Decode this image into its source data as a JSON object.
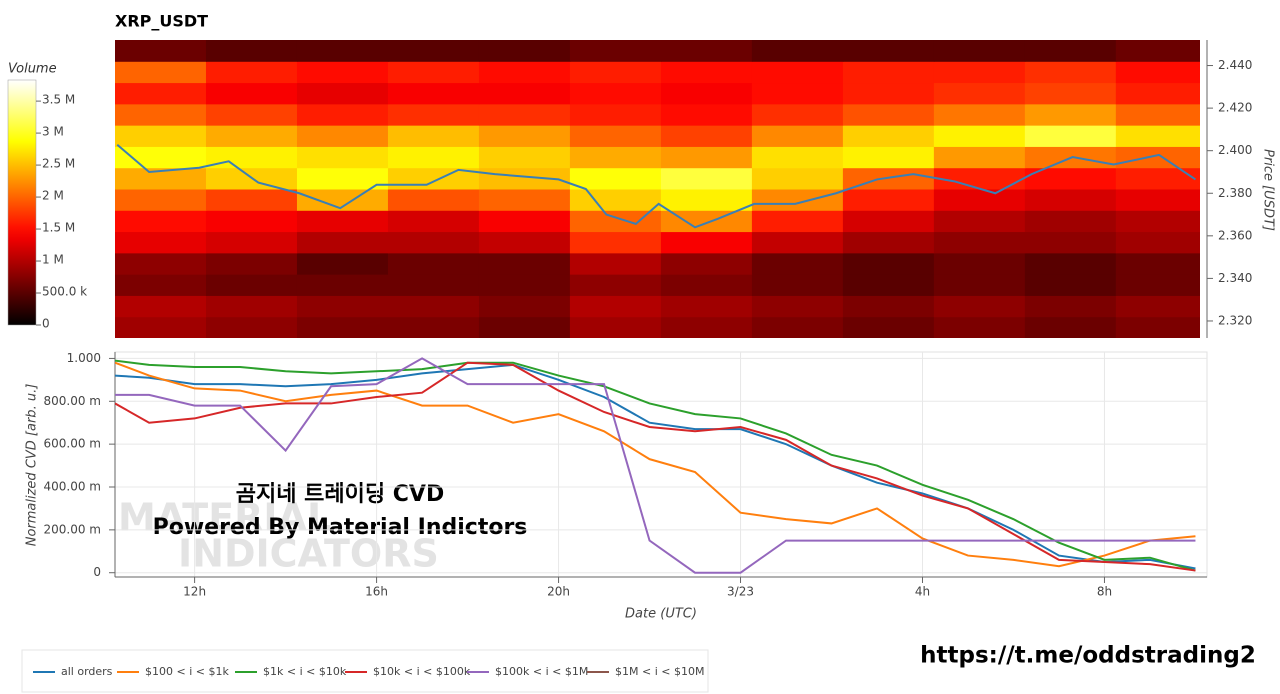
{
  "chart_data": [
    {
      "type": "heatmap",
      "title": "XRP_USDT",
      "colorbar_label": "Volume",
      "y_label": "Price [USDT]",
      "colormap": "hot",
      "x_edges": [
        10.25,
        12.25,
        14.25,
        16.25,
        18.25,
        20.25,
        22.25,
        24.25,
        26.25,
        28.25,
        30.25,
        32.25,
        34.25
      ],
      "y_edges": [
        2.312,
        2.322,
        2.332,
        2.342,
        2.352,
        2.362,
        2.372,
        2.382,
        2.392,
        2.402,
        2.412,
        2.422,
        2.432,
        2.442,
        2.452
      ],
      "values": [
        [
          0.9,
          0.8,
          0.7,
          0.7,
          0.6,
          0.9,
          0.8,
          0.7,
          0.6,
          0.7,
          0.6,
          0.7
        ],
        [
          1.0,
          0.9,
          0.8,
          0.8,
          0.7,
          1.0,
          0.9,
          0.8,
          0.7,
          0.8,
          0.7,
          0.8
        ],
        [
          0.7,
          0.6,
          0.6,
          0.6,
          0.6,
          0.8,
          0.7,
          0.6,
          0.5,
          0.6,
          0.5,
          0.6
        ],
        [
          0.8,
          0.7,
          0.5,
          0.6,
          0.6,
          1.0,
          0.8,
          0.6,
          0.5,
          0.6,
          0.5,
          0.6
        ],
        [
          1.3,
          1.2,
          1.0,
          1.0,
          1.1,
          1.7,
          1.4,
          1.1,
          0.9,
          0.8,
          0.8,
          0.9
        ],
        [
          1.5,
          1.4,
          1.3,
          1.2,
          1.4,
          2.0,
          2.2,
          1.6,
          1.2,
          1.0,
          0.9,
          1.0
        ],
        [
          2.0,
          1.8,
          2.4,
          1.9,
          2.0,
          2.6,
          2.8,
          2.2,
          1.6,
          1.3,
          1.2,
          1.3
        ],
        [
          2.4,
          2.6,
          2.9,
          2.6,
          2.5,
          2.9,
          3.1,
          2.6,
          2.0,
          1.6,
          1.5,
          1.6
        ],
        [
          2.9,
          2.8,
          2.7,
          2.8,
          2.6,
          2.4,
          2.3,
          2.7,
          2.8,
          2.3,
          2.1,
          2.0
        ],
        [
          2.6,
          2.4,
          2.2,
          2.5,
          2.3,
          2.0,
          1.8,
          2.2,
          2.6,
          2.8,
          3.1,
          2.7
        ],
        [
          2.0,
          1.8,
          1.6,
          1.7,
          1.7,
          1.6,
          1.5,
          1.7,
          1.9,
          2.1,
          2.3,
          2.0
        ],
        [
          1.6,
          1.4,
          1.3,
          1.4,
          1.4,
          1.5,
          1.4,
          1.5,
          1.6,
          1.7,
          1.8,
          1.6
        ],
        [
          2.0,
          1.6,
          1.5,
          1.6,
          1.5,
          1.6,
          1.5,
          1.5,
          1.6,
          1.6,
          1.7,
          1.5
        ],
        [
          0.6,
          0.5,
          0.5,
          0.5,
          0.5,
          0.6,
          0.6,
          0.5,
          0.5,
          0.5,
          0.5,
          0.6
        ]
      ],
      "vlim": [
        0,
        3.83
      ],
      "colorbar_ticks": [
        0,
        {
          "value": 0.5,
          "label": "500.0 k"
        },
        {
          "value": 1,
          "label": "1 M"
        },
        {
          "value": 1.5,
          "label": "1.5 M"
        },
        {
          "value": 2,
          "label": "2 M"
        },
        {
          "value": 2.5,
          "label": "2.5 M"
        },
        {
          "value": 3,
          "label": "3 M"
        },
        {
          "value": 3.5,
          "label": "3.5 M"
        }
      ],
      "xlim": [
        10.25,
        34.1
      ],
      "ylim": [
        2.312,
        2.452
      ],
      "yticks": [
        {
          "value": 2.32,
          "label": "2.320"
        },
        {
          "value": 2.34,
          "label": "2.340"
        },
        {
          "value": 2.36,
          "label": "2.360"
        },
        {
          "value": 2.38,
          "label": "2.380"
        },
        {
          "value": 2.4,
          "label": "2.400"
        },
        {
          "value": 2.42,
          "label": "2.420"
        },
        {
          "value": 2.44,
          "label": "2.440"
        }
      ],
      "price_color": "#3a7fb5",
      "price_x": [
        10.3,
        11,
        12.1,
        12.75,
        13.4,
        14.3,
        15.2,
        16,
        17.1,
        17.8,
        18.6,
        20,
        20.6,
        21.05,
        21.7,
        22.2,
        23,
        23.5,
        24.3,
        25.2,
        26.1,
        27,
        27.8,
        28.7,
        29.6,
        30.4,
        31.3,
        32.2,
        33.2,
        34
      ],
      "price_y": [
        2.4028,
        2.39,
        2.392,
        2.395,
        2.385,
        2.38,
        2.373,
        2.384,
        2.384,
        2.391,
        2.389,
        2.3865,
        2.382,
        2.37,
        2.3656,
        2.375,
        2.364,
        2.368,
        2.375,
        2.375,
        2.38,
        2.3865,
        2.389,
        2.3856,
        2.38,
        2.389,
        2.397,
        2.3935,
        2.398,
        2.3865
      ]
    },
    {
      "type": "line",
      "x_label": "Date (UTC)",
      "y_label": "Normalized CVD [arb. u.]",
      "x": [
        10.25,
        11,
        12,
        13,
        14,
        15,
        16,
        17,
        18,
        19,
        20,
        21,
        22,
        23,
        24,
        25,
        26,
        27,
        28,
        29,
        30,
        31,
        32,
        33,
        34
      ],
      "series": [
        {
          "name": "all orders",
          "color": "#1f77b4",
          "values": [
            0.92,
            0.91,
            0.88,
            0.88,
            0.87,
            0.88,
            0.9,
            0.93,
            0.95,
            0.97,
            0.9,
            0.82,
            0.7,
            0.67,
            0.67,
            0.6,
            0.5,
            0.42,
            0.37,
            0.3,
            0.2,
            0.08,
            0.05,
            0.06,
            0.02
          ]
        },
        {
          "name": "$100 < i < $1k",
          "color": "#ff7f0e",
          "values": [
            0.98,
            0.92,
            0.86,
            0.85,
            0.8,
            0.83,
            0.85,
            0.78,
            0.78,
            0.7,
            0.74,
            0.66,
            0.53,
            0.47,
            0.28,
            0.25,
            0.23,
            0.3,
            0.16,
            0.08,
            0.06,
            0.03,
            0.08,
            0.15,
            0.17
          ]
        },
        {
          "name": "$1k < i < $10k",
          "color": "#2ca02c",
          "values": [
            0.99,
            0.97,
            0.96,
            0.96,
            0.94,
            0.93,
            0.94,
            0.95,
            0.98,
            0.98,
            0.92,
            0.87,
            0.79,
            0.74,
            0.72,
            0.65,
            0.55,
            0.5,
            0.41,
            0.34,
            0.25,
            0.14,
            0.06,
            0.07,
            0.01
          ]
        },
        {
          "name": "$10k < i < $100k",
          "color": "#d62728",
          "values": [
            0.79,
            0.7,
            0.72,
            0.77,
            0.79,
            0.79,
            0.82,
            0.84,
            0.98,
            0.97,
            0.85,
            0.75,
            0.68,
            0.66,
            0.68,
            0.62,
            0.5,
            0.44,
            0.36,
            0.3,
            0.18,
            0.06,
            0.05,
            0.04,
            0.01
          ]
        },
        {
          "name": "$100k < i < $1M",
          "color": "#9467bd",
          "values": [
            0.83,
            0.83,
            0.78,
            0.78,
            0.57,
            0.87,
            0.88,
            1.0,
            0.88,
            0.88,
            0.88,
            0.88,
            0.15,
            0,
            0,
            0.15,
            0.15,
            0.15,
            0.15,
            0.15,
            0.15,
            0.15,
            0.15,
            0.15,
            0.15
          ]
        },
        {
          "name": "$1M < i < $10M",
          "color": "#8c564b",
          "values": [
            null,
            null,
            null,
            null,
            null,
            null,
            null,
            null,
            null,
            null,
            null,
            null,
            null,
            null,
            null,
            null,
            null,
            null,
            null,
            null,
            null,
            null,
            null,
            null,
            null
          ]
        }
      ],
      "xlim": [
        10.25,
        34.1
      ],
      "xticks": [
        {
          "value": 12,
          "label": "12h"
        },
        {
          "value": 16,
          "label": "16h"
        },
        {
          "value": 20,
          "label": "20h"
        },
        {
          "value": 24,
          "label": "3/23"
        },
        {
          "value": 28,
          "label": "4h"
        },
        {
          "value": 32,
          "label": "8h"
        }
      ],
      "ylim": [
        -0.02,
        1.03
      ],
      "yticks": [
        0,
        {
          "value": 0.2,
          "label": "200.00 m"
        },
        {
          "value": 0.4,
          "label": "400.00 m"
        },
        {
          "value": 0.6,
          "label": "600.00 m"
        },
        {
          "value": 0.8,
          "label": "800.00 m"
        },
        {
          "value": 1,
          "label": "1.000"
        }
      ],
      "grid": true,
      "legend": "bottom"
    }
  ],
  "annotations": [
    "곰지네 트레이딩 CVD",
    "Powered By Material Indictors"
  ],
  "watermark": [
    "MATERIAL",
    "INDICATORS"
  ],
  "link": "https://t.me/oddstrading2"
}
